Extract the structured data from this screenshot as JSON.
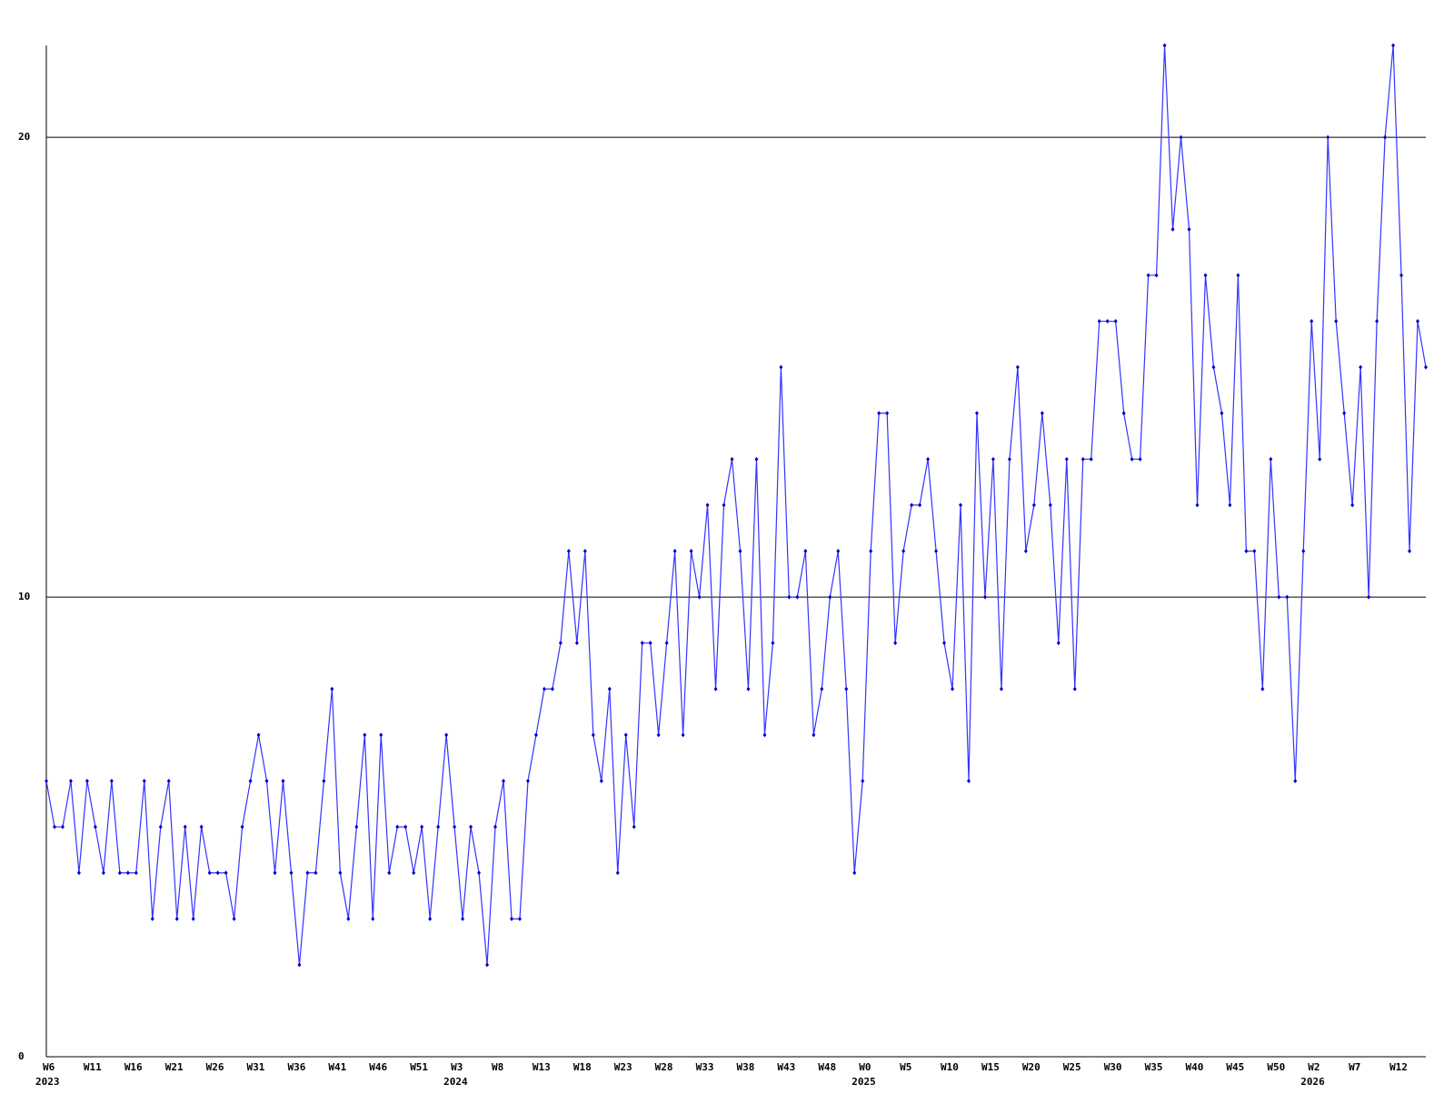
{
  "chart_data": {
    "type": "line",
    "categories": [
      "W6",
      null,
      null,
      null,
      null,
      "W11",
      null,
      null,
      null,
      null,
      "W16",
      null,
      null,
      null,
      null,
      "W21",
      null,
      null,
      null,
      null,
      "W26",
      null,
      null,
      null,
      null,
      "W31",
      null,
      null,
      null,
      null,
      "W36",
      null,
      null,
      null,
      null,
      "W41",
      null,
      null,
      null,
      null,
      "W46",
      null,
      null,
      null,
      null,
      "W51",
      null,
      null,
      null,
      null,
      "W3",
      null,
      null,
      null,
      null,
      "W8",
      null,
      null,
      null,
      null,
      "W13",
      null,
      null,
      null,
      null,
      "W18",
      null,
      null,
      null,
      null,
      "W23",
      null,
      null,
      null,
      null,
      "W28",
      null,
      null,
      null,
      null,
      "W33",
      null,
      null,
      null,
      null,
      "W38",
      null,
      null,
      null,
      null,
      "W43",
      null,
      null,
      null,
      null,
      "W48",
      null,
      null,
      null,
      null,
      "W0",
      null,
      null,
      null,
      null,
      "W5",
      null,
      null,
      null,
      null,
      "W10",
      null,
      null,
      null,
      null,
      "W15",
      null,
      null,
      null,
      null,
      "W20",
      null,
      null,
      null,
      null,
      "W25",
      null,
      null,
      null,
      null,
      "W30",
      null,
      null,
      null,
      null,
      "W35",
      null,
      null,
      null,
      null,
      "W40",
      null,
      null,
      null,
      null,
      "W45",
      null,
      null,
      null,
      null,
      "W50",
      null,
      null,
      null,
      null,
      "W2",
      null,
      null,
      null,
      null,
      "W7",
      null,
      null,
      null,
      null,
      "W12",
      null,
      null,
      null,
      null
    ],
    "category_groups": [
      "2023",
      null,
      null,
      null,
      null,
      null,
      null,
      null,
      null,
      null,
      null,
      null,
      null,
      null,
      null,
      null,
      null,
      null,
      null,
      null,
      null,
      null,
      null,
      null,
      null,
      null,
      null,
      null,
      null,
      null,
      null,
      null,
      null,
      null,
      null,
      null,
      null,
      null,
      null,
      null,
      null,
      null,
      null,
      null,
      null,
      null,
      null,
      null,
      null,
      null,
      "2024",
      null,
      null,
      null,
      null,
      null,
      null,
      null,
      null,
      null,
      null,
      null,
      null,
      null,
      null,
      null,
      null,
      null,
      null,
      null,
      null,
      null,
      null,
      null,
      null,
      null,
      null,
      null,
      null,
      null,
      null,
      null,
      null,
      null,
      null,
      null,
      null,
      null,
      null,
      null,
      null,
      null,
      null,
      null,
      null,
      null,
      null,
      null,
      null,
      null,
      "2025",
      null,
      null,
      null,
      null,
      null,
      null,
      null,
      null,
      null,
      null,
      null,
      null,
      null,
      null,
      null,
      null,
      null,
      null,
      null,
      null,
      null,
      null,
      null,
      null,
      null,
      null,
      null,
      null,
      null,
      null,
      null,
      null,
      null,
      null,
      null,
      null,
      null,
      null,
      null,
      null,
      null,
      null,
      null,
      null,
      null,
      null,
      null,
      null,
      null,
      null,
      null,
      null,
      null,
      null,
      "2026",
      null,
      null,
      null,
      null,
      null,
      null,
      null,
      null,
      null,
      null,
      null,
      null,
      null,
      null
    ],
    "values": [
      6,
      5,
      5,
      6,
      4,
      6,
      5,
      4,
      6,
      4,
      4,
      4,
      6,
      3,
      5,
      6,
      3,
      5,
      3,
      5,
      4,
      4,
      4,
      3,
      5,
      6,
      7,
      6,
      4,
      6,
      4,
      2,
      4,
      4,
      6,
      8,
      4,
      3,
      5,
      7,
      3,
      7,
      4,
      5,
      5,
      4,
      5,
      3,
      5,
      7,
      5,
      3,
      5,
      4,
      2,
      5,
      6,
      3,
      3,
      6,
      7,
      8,
      8,
      9,
      11,
      9,
      11,
      7,
      6,
      8,
      4,
      7,
      5,
      9,
      9,
      7,
      9,
      11,
      7,
      11,
      10,
      12,
      8,
      12,
      13,
      11,
      8,
      13,
      7,
      9,
      15,
      10,
      10,
      11,
      7,
      8,
      10,
      11,
      8,
      4,
      6,
      11,
      14,
      14,
      9,
      11,
      12,
      12,
      13,
      11,
      9,
      8,
      12,
      6,
      14,
      10,
      13,
      8,
      13,
      15,
      11,
      12,
      14,
      12,
      9,
      13,
      8,
      13,
      13,
      16,
      16,
      16,
      14,
      13,
      13,
      17,
      17,
      22,
      18,
      20,
      18,
      12,
      17,
      15,
      14,
      12,
      17,
      11,
      11,
      8,
      13,
      10,
      10,
      6,
      11,
      16,
      13,
      20,
      16,
      14,
      12,
      15,
      10,
      16,
      20,
      22,
      17,
      11,
      16,
      15
    ],
    "color": "#3333ff",
    "ylim": [
      0,
      22
    ],
    "yticks": [
      0,
      10,
      20
    ],
    "grid": true
  }
}
